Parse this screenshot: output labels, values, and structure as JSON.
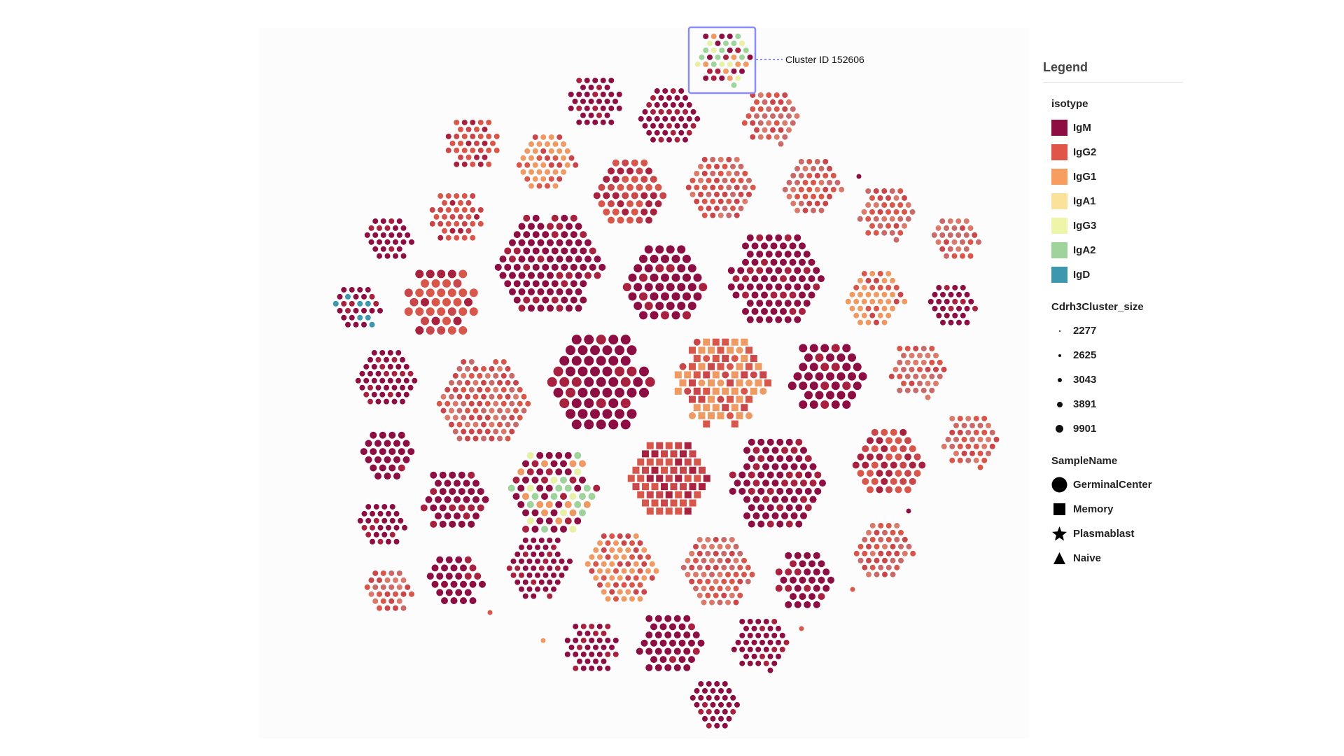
{
  "annotation": {
    "label": "Cluster ID 152606",
    "highlight_color": "#8b8df0"
  },
  "legend": {
    "title": "Legend",
    "isotype": {
      "title": "isotype",
      "items": [
        {
          "label": "IgM",
          "color": "#8c0e43"
        },
        {
          "label": "IgG2",
          "color": "#e0574a"
        },
        {
          "label": "IgG1",
          "color": "#f59e60"
        },
        {
          "label": "IgA1",
          "color": "#fbe29a"
        },
        {
          "label": "IgG3",
          "color": "#eef5a8"
        },
        {
          "label": "IgA2",
          "color": "#9ed49b"
        },
        {
          "label": "IgD",
          "color": "#3d97ae"
        }
      ]
    },
    "cluster_size": {
      "title": "Cdrh3Cluster_size",
      "items": [
        {
          "label": "2277",
          "marker": "dot-xs"
        },
        {
          "label": "2625",
          "marker": "dot-s"
        },
        {
          "label": "3043",
          "marker": "dot-m"
        },
        {
          "label": "3891",
          "marker": "dot-l"
        },
        {
          "label": "9901",
          "marker": "dot-xl"
        }
      ]
    },
    "sample_name": {
      "title": "SampleName",
      "items": [
        {
          "label": "GerminalCenter",
          "marker": "circle-icon"
        },
        {
          "label": "Memory",
          "marker": "square-icon"
        },
        {
          "label": "Plasmablast",
          "marker": "star-icon"
        },
        {
          "label": "Naive",
          "marker": "triangle-icon"
        }
      ]
    }
  },
  "chart_data": {
    "type": "network",
    "node_encoding": {
      "color": "isotype",
      "size": "Cdrh3Cluster_size",
      "shape": "SampleName"
    },
    "highlighted_cluster": "Cluster ID 152606"
  }
}
